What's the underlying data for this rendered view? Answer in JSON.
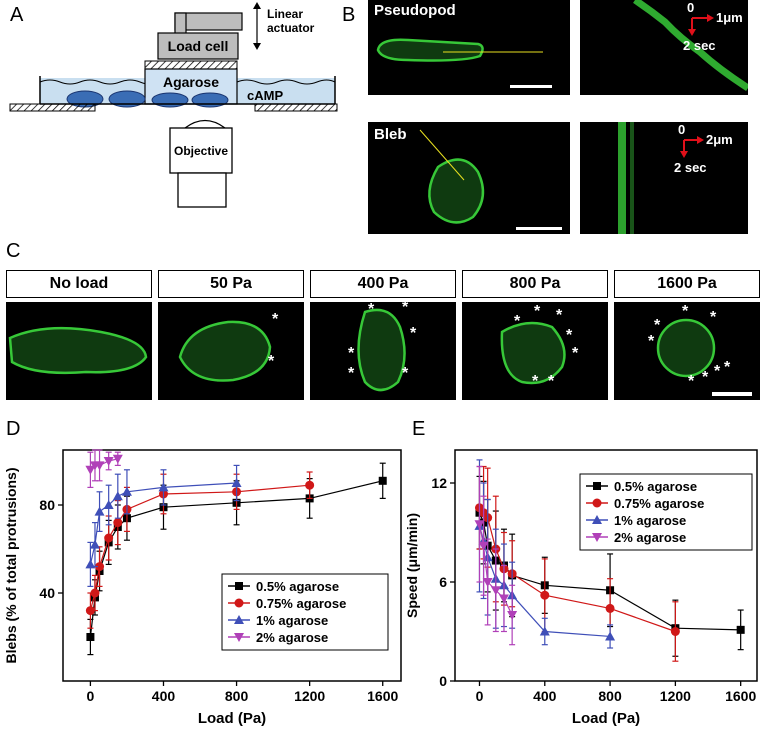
{
  "panels": {
    "a": "A",
    "b": "B",
    "c": "C",
    "d": "D",
    "e": "E"
  },
  "panel_a": {
    "linear_actuator_line1": "Linear",
    "linear_actuator_line2": "actuator",
    "load_cell": "Load cell",
    "agarose": "Agarose",
    "camp": "cAMP",
    "objective": "Objective"
  },
  "panel_b": {
    "pseudopod": "Pseudopod",
    "bleb": "Bleb",
    "pseudopod_kymo": {
      "origin": "0",
      "space": "1μm",
      "time": "2 sec"
    },
    "bleb_kymo": {
      "origin": "0",
      "space": "2μm",
      "time": "2 sec"
    }
  },
  "panel_c": {
    "conditions": [
      "No load",
      "50 Pa",
      "400 Pa",
      "800 Pa",
      "1600 Pa"
    ]
  },
  "colors": {
    "black": "#000000",
    "red": "#d01818",
    "blue": "#3f4fb8",
    "magenta": "#b040b8",
    "fluor_green": "#37c838",
    "arrow_red": "#e0101a"
  },
  "chart_data": [
    {
      "type": "line",
      "ylabel": "Blebs (% of total protrusions)",
      "xlabel": "Load (Pa)",
      "xlim": [
        -150,
        1700
      ],
      "ylim": [
        0,
        105
      ],
      "xticks": [
        "0",
        "400",
        "800",
        "1200",
        "1600"
      ],
      "yticks": [
        "40",
        "80"
      ],
      "legend_position": "center-right",
      "series": [
        {
          "name": "0.5% agarose",
          "color": "#000000",
          "marker": "square",
          "x": [
            0,
            25,
            50,
            100,
            150,
            200,
            400,
            800,
            1200,
            1600
          ],
          "y": [
            20,
            38,
            50,
            63,
            70,
            74,
            79,
            81,
            83,
            91
          ],
          "err": [
            8,
            8,
            9,
            10,
            10,
            10,
            10,
            10,
            9,
            8
          ]
        },
        {
          "name": "0.75% agarose",
          "color": "#d01818",
          "marker": "circle",
          "x": [
            0,
            25,
            50,
            100,
            150,
            200,
            400,
            800,
            1200
          ],
          "y": [
            32,
            40,
            52,
            65,
            72,
            78,
            85,
            86,
            89
          ],
          "err": [
            8,
            8,
            9,
            10,
            10,
            10,
            9,
            8,
            6
          ]
        },
        {
          "name": "1% agarose",
          "color": "#3f4fb8",
          "marker": "triangle-up",
          "x": [
            0,
            25,
            50,
            100,
            150,
            200,
            400,
            800
          ],
          "y": [
            53,
            62,
            77,
            80,
            84,
            86,
            88,
            90
          ],
          "err": [
            10,
            10,
            9,
            9,
            10,
            10,
            8,
            8
          ]
        },
        {
          "name": "2% agarose",
          "color": "#b040b8",
          "marker": "triangle-down",
          "x": [
            0,
            25,
            50,
            100,
            150
          ],
          "y": [
            96,
            98,
            98,
            100,
            101
          ],
          "err": [
            8,
            7,
            7,
            4,
            3
          ]
        }
      ]
    },
    {
      "type": "line",
      "ylabel": "Speed (μm/min)",
      "xlabel": "Load (Pa)",
      "xlim": [
        -150,
        1700
      ],
      "ylim": [
        0,
        14
      ],
      "xticks": [
        "0",
        "400",
        "800",
        "1200",
        "1600"
      ],
      "yticks": [
        "0",
        "6",
        "12"
      ],
      "legend_position": "top-right",
      "series": [
        {
          "name": "0.5% agarose",
          "color": "#000000",
          "marker": "square",
          "x": [
            0,
            25,
            50,
            100,
            150,
            200,
            400,
            800,
            1200,
            1600
          ],
          "y": [
            10.2,
            9.6,
            8.2,
            7.3,
            7.0,
            6.4,
            5.8,
            5.5,
            3.2,
            3.1
          ],
          "err": [
            2.2,
            2.5,
            2.8,
            3.0,
            2.2,
            2.5,
            1.7,
            2.2,
            1.7,
            1.2
          ]
        },
        {
          "name": "0.75% agarose",
          "color": "#d01818",
          "marker": "circle",
          "x": [
            0,
            25,
            50,
            100,
            150,
            200,
            400,
            800,
            1200
          ],
          "y": [
            10.5,
            10.2,
            9.9,
            8.0,
            6.8,
            6.5,
            5.2,
            4.4,
            3.0
          ],
          "err": [
            2.5,
            2.8,
            3.0,
            3.2,
            2.2,
            2.0,
            2.2,
            1.8,
            1.8
          ]
        },
        {
          "name": "1% agarose",
          "color": "#3f4fb8",
          "marker": "triangle-up",
          "x": [
            0,
            25,
            50,
            100,
            150,
            200,
            400,
            800
          ],
          "y": [
            9.4,
            8.5,
            7.5,
            6.2,
            5.8,
            5.2,
            3.0,
            2.7
          ],
          "err": [
            4.0,
            3.5,
            3.5,
            3.0,
            2.5,
            2.0,
            0.8,
            0.7
          ]
        },
        {
          "name": "2% agarose",
          "color": "#b040b8",
          "marker": "triangle-down",
          "x": [
            0,
            25,
            50,
            100,
            150,
            200
          ],
          "y": [
            9.5,
            8.2,
            6.0,
            5.5,
            5.0,
            4.0
          ],
          "err": [
            3.5,
            3.0,
            2.6,
            2.5,
            2.0,
            1.8
          ]
        }
      ]
    }
  ]
}
